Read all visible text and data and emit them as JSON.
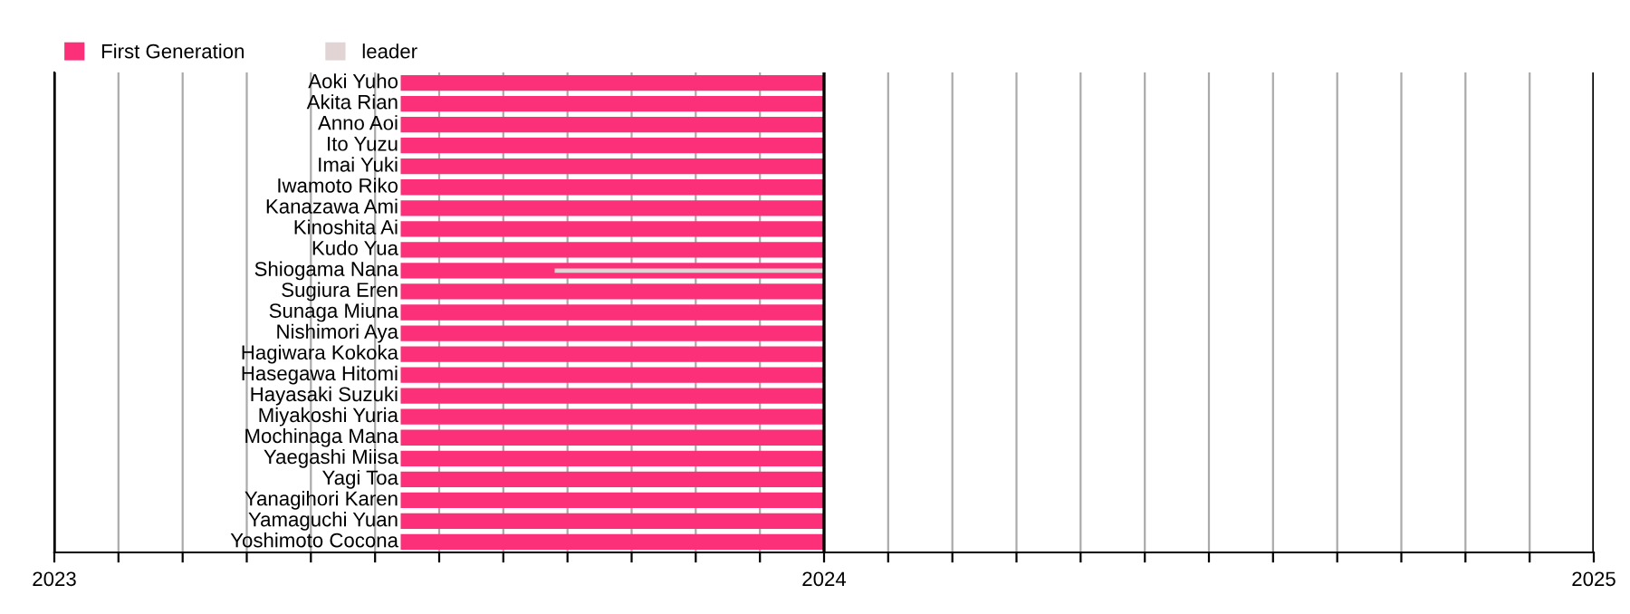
{
  "chart_data": {
    "type": "bar",
    "orientation": "horizontal",
    "categories": [
      "Aoki Yuho",
      "Akita Rian",
      "Anno Aoi",
      "Ito Yuzu",
      "Imai Yuki",
      "Iwamoto Riko",
      "Kanazawa Ami",
      "Kinoshita Ai",
      "Kudo Yua",
      "Shiogama Nana",
      "Sugiura Eren",
      "Sunaga Miuna",
      "Nishimori Aya",
      "Hagiwara Kokoka",
      "Hasegawa Hitomi",
      "Hayasaki Suzuki",
      "Miyakoshi Yuria",
      "Mochinaga Mana",
      "Yaegashi Miisa",
      "Yagi Toa",
      "Yanagihori Karen",
      "Yamaguchi Yuan",
      "Yoshimoto Cocona"
    ],
    "series": [
      {
        "name": "First Generation",
        "color": "#fb3079",
        "base": [
          2023.45,
          2023.45,
          2023.45,
          2023.45,
          2023.45,
          2023.45,
          2023.45,
          2023.45,
          2023.45,
          2023.45,
          2023.45,
          2023.45,
          2023.45,
          2023.45,
          2023.45,
          2023.45,
          2023.45,
          2023.45,
          2023.45,
          2023.45,
          2023.45,
          2023.45,
          2023.45
        ],
        "values": [
          0.55,
          0.55,
          0.55,
          0.55,
          0.55,
          0.55,
          0.55,
          0.55,
          0.55,
          0.55,
          0.55,
          0.55,
          0.55,
          0.55,
          0.55,
          0.55,
          0.55,
          0.55,
          0.55,
          0.55,
          0.55,
          0.55,
          0.55
        ]
      },
      {
        "name": "leader",
        "color": "#e2d4d4",
        "base": [
          null,
          null,
          null,
          null,
          null,
          null,
          null,
          null,
          null,
          2023.65,
          null,
          null,
          null,
          null,
          null,
          null,
          null,
          null,
          null,
          null,
          null,
          null,
          null
        ],
        "values": [
          null,
          null,
          null,
          null,
          null,
          null,
          null,
          null,
          null,
          0.35,
          null,
          null,
          null,
          null,
          null,
          null,
          null,
          null,
          null,
          null,
          null,
          null,
          null
        ]
      }
    ],
    "xlim": [
      2023,
      2025
    ],
    "xticks": [
      2023,
      {
        "value": 2023.0833,
        "label": null
      },
      {
        "value": 2023.1667,
        "label": null
      },
      {
        "value": 2023.25,
        "label": null
      },
      {
        "value": 2023.3333,
        "label": null
      },
      {
        "value": 2023.4167,
        "label": null
      },
      {
        "value": 2023.5,
        "label": null
      },
      {
        "value": 2023.5833,
        "label": null
      },
      {
        "value": 2023.6667,
        "label": null
      },
      {
        "value": 2023.75,
        "label": null
      },
      {
        "value": 2023.8333,
        "label": null
      },
      {
        "value": 2023.9167,
        "label": null
      },
      2024,
      {
        "value": 2024.0833,
        "label": null
      },
      {
        "value": 2024.1667,
        "label": null
      },
      {
        "value": 2024.25,
        "label": null
      },
      {
        "value": 2024.3333,
        "label": null
      },
      {
        "value": 2024.4167,
        "label": null
      },
      {
        "value": 2024.5,
        "label": null
      },
      {
        "value": 2024.5833,
        "label": null
      },
      {
        "value": 2024.6667,
        "label": null
      },
      {
        "value": 2024.75,
        "label": null
      },
      {
        "value": 2024.8333,
        "label": null
      },
      {
        "value": 2024.9167,
        "label": null
      },
      2025
    ],
    "grid": "x",
    "legend": "top left"
  }
}
